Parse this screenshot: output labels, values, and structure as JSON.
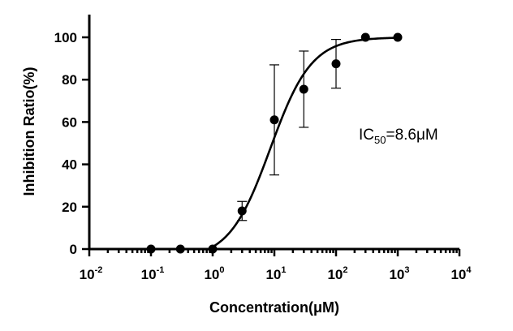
{
  "chart_data": {
    "type": "scatter",
    "title": "",
    "xlabel": "Concentration(μM)",
    "ylabel": "Inhibition Ratio(%)",
    "x_scale": "log",
    "xlim": [
      0.01,
      10000
    ],
    "ylim": [
      0,
      100
    ],
    "x_ticks": [
      {
        "base": "10",
        "exp": "-2",
        "value": 0.01
      },
      {
        "base": "10",
        "exp": "-1",
        "value": 0.1
      },
      {
        "base": "10",
        "exp": "0",
        "value": 1
      },
      {
        "base": "10",
        "exp": "1",
        "value": 10
      },
      {
        "base": "10",
        "exp": "2",
        "value": 100
      },
      {
        "base": "10",
        "exp": "3",
        "value": 1000
      },
      {
        "base": "10",
        "exp": "4",
        "value": 10000
      }
    ],
    "y_ticks": [
      0,
      20,
      40,
      60,
      80,
      100
    ],
    "points": [
      {
        "x": 0.1,
        "y": 0,
        "err": 0
      },
      {
        "x": 0.3,
        "y": 0,
        "err": 0
      },
      {
        "x": 1,
        "y": 0,
        "err": 0
      },
      {
        "x": 3,
        "y": 18,
        "err": 4.5
      },
      {
        "x": 10,
        "y": 61,
        "err": 26
      },
      {
        "x": 30,
        "y": 75.5,
        "err": 18
      },
      {
        "x": 100,
        "y": 87.5,
        "err": 11.5
      },
      {
        "x": 300,
        "y": 100,
        "err": 0
      },
      {
        "x": 1000,
        "y": 100,
        "err": 0
      }
    ],
    "fit": {
      "model": "four-parameter logistic",
      "bottom": -5,
      "top": 100,
      "ic50": 8.6,
      "hill": 1.3
    },
    "annotation": {
      "prefix": "IC",
      "subscript": "50",
      "suffix": "=8.6μM"
    },
    "grid": false,
    "legend": "none"
  }
}
